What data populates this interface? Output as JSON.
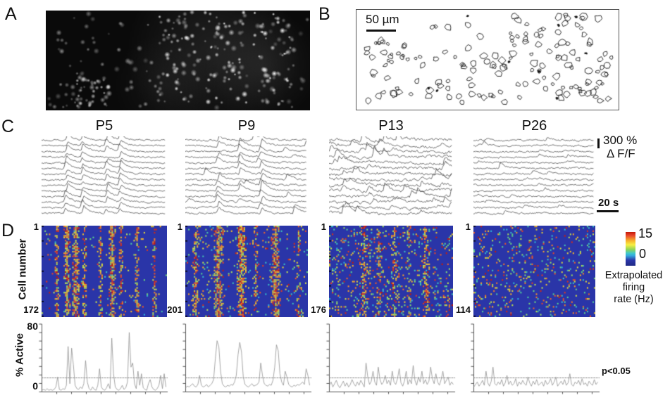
{
  "panel_a": {
    "label": "A"
  },
  "panel_b": {
    "label": "B",
    "scale_bar": "50 µm"
  },
  "panel_c": {
    "label": "C",
    "ages": [
      "P5",
      "P9",
      "P13",
      "P26"
    ],
    "y_scale_value": "300 %",
    "y_scale_unit": "Δ F/F",
    "x_scale": "20 s"
  },
  "panel_d": {
    "label": "D",
    "ylabel": "Cell number",
    "first_cell_label": "1",
    "cell_counts": [
      "172",
      "201",
      "176",
      "114"
    ],
    "colorbar": {
      "max": "15",
      "min": "0",
      "title": [
        "Extrapolated",
        "firing",
        "rate (Hz)"
      ]
    },
    "activity": {
      "ymax": "80",
      "ymin": "0",
      "ylabel": "% Active",
      "significance": "p<0.05"
    }
  },
  "chart_data": [
    {
      "id": "fluorescence",
      "type": "scatter",
      "panel": "A",
      "description": "Fluorescence image of labeled cells, brighter dense cluster right of center",
      "n_cells": 330,
      "seed": 11,
      "haze": [
        {
          "x": 0.63,
          "y": 0.4,
          "r": 0.33,
          "a": 0.14
        },
        {
          "x": 0.82,
          "y": 0.55,
          "r": 0.22,
          "a": 0.12
        },
        {
          "x": 0.45,
          "y": 0.75,
          "r": 0.2,
          "a": 0.07
        }
      ]
    },
    {
      "id": "contours",
      "type": "scatter",
      "panel": "B",
      "description": "Outlines of detected cells",
      "n_cells": 185,
      "scale_bar_um": 50,
      "seed": 22
    },
    {
      "id": "traces-p5",
      "type": "line",
      "panel": "C",
      "age": "P5",
      "n_traces": 14,
      "y_scale_pct": 300,
      "x_scale_s": 20,
      "sync_events": [
        0.2,
        0.33,
        0.52,
        0.63
      ],
      "participation": 0.9,
      "amp": 9,
      "noise": 0.9,
      "rand_events": 0,
      "wander": 0.5,
      "seed": 31
    },
    {
      "id": "traces-p9",
      "type": "line",
      "panel": "C",
      "age": "P9",
      "n_traces": 14,
      "y_scale_pct": 300,
      "x_scale_s": 20,
      "sync_events": [
        0.27,
        0.45,
        0.62
      ],
      "participation": 0.7,
      "amp": 10,
      "noise": 1.0,
      "rand_events": 1,
      "wander": 0.7,
      "seed": 32
    },
    {
      "id": "traces-p13",
      "type": "line",
      "panel": "C",
      "age": "P13",
      "n_traces": 14,
      "y_scale_pct": 300,
      "x_scale_s": 20,
      "sync_events": [],
      "participation": 0,
      "amp": 11,
      "noise": 1.6,
      "rand_events": 4,
      "wander": 2,
      "seed": 33
    },
    {
      "id": "traces-p26",
      "type": "line",
      "panel": "C",
      "age": "P26",
      "n_traces": 14,
      "y_scale_pct": 300,
      "x_scale_s": 20,
      "sync_events": [],
      "participation": 0,
      "amp": 4.5,
      "noise": 1.0,
      "rand_events": 2,
      "wander": 0.5,
      "seed": 34
    },
    {
      "id": "raster-p5",
      "type": "heatmap",
      "panel": "D",
      "age": "P5",
      "n_cells": 172,
      "vmin": 0,
      "vmax": 15,
      "value_unit": "Hz",
      "colormap": "jet",
      "time_bins": 86,
      "display_rows": 58,
      "speckle": 0.02,
      "seed": 41,
      "bands": [
        [
          0.12,
          1,
          0.55
        ],
        [
          0.2,
          2,
          0.85
        ],
        [
          0.27,
          2,
          0.8
        ],
        [
          0.34,
          1,
          0.5
        ],
        [
          0.47,
          1,
          0.45
        ],
        [
          0.56,
          2,
          0.8
        ],
        [
          0.63,
          1,
          0.5
        ],
        [
          0.76,
          1,
          0.6
        ],
        [
          0.9,
          1,
          0.5
        ]
      ]
    },
    {
      "id": "raster-p9",
      "type": "heatmap",
      "panel": "D",
      "age": "P9",
      "n_cells": 201,
      "vmin": 0,
      "vmax": 15,
      "value_unit": "Hz",
      "colormap": "jet",
      "time_bins": 86,
      "display_rows": 58,
      "speckle": 0.055,
      "seed": 42,
      "bands": [
        [
          0.08,
          2,
          0.5
        ],
        [
          0.27,
          3,
          0.8
        ],
        [
          0.45,
          3,
          0.85
        ],
        [
          0.57,
          1,
          0.4
        ],
        [
          0.73,
          3,
          0.8
        ],
        [
          0.92,
          1,
          0.45
        ]
      ]
    },
    {
      "id": "raster-p13",
      "type": "heatmap",
      "panel": "D",
      "age": "P13",
      "n_cells": 176,
      "vmin": 0,
      "vmax": 15,
      "value_unit": "Hz",
      "colormap": "jet",
      "time_bins": 86,
      "display_rows": 58,
      "speckle": 0.12,
      "seed": 43,
      "bands": [
        [
          0.28,
          2,
          0.45
        ],
        [
          0.4,
          1,
          0.35
        ],
        [
          0.52,
          2,
          0.4
        ],
        [
          0.64,
          1,
          0.35
        ],
        [
          0.78,
          2,
          0.45
        ]
      ]
    },
    {
      "id": "raster-p26",
      "type": "heatmap",
      "panel": "D",
      "age": "P26",
      "n_cells": 114,
      "vmin": 0,
      "vmax": 15,
      "value_unit": "Hz",
      "colormap": "jet",
      "time_bins": 86,
      "display_rows": 58,
      "speckle": 0.1,
      "seed": 44,
      "bands": []
    },
    {
      "id": "active-p5",
      "type": "line",
      "panel": "D",
      "age": "P5",
      "ylabel": "% Active",
      "ylim": [
        0,
        80
      ],
      "threshold": 17,
      "threshold_label": "p<0.05",
      "seed": 51,
      "values": [
        2,
        3,
        2,
        4,
        2,
        3,
        2,
        3,
        6,
        18,
        3,
        2,
        4,
        3,
        8,
        55,
        10,
        53,
        33,
        8,
        4,
        3,
        6,
        4,
        10,
        38,
        12,
        4,
        2,
        6,
        3,
        2,
        8,
        28,
        6,
        3,
        2,
        5,
        10,
        4,
        65,
        22,
        6,
        3,
        2,
        4,
        8,
        3,
        5,
        12,
        72,
        30,
        35,
        10,
        4,
        25,
        8,
        22,
        5,
        3,
        2,
        10,
        15,
        6,
        3,
        2,
        4,
        8,
        20,
        4,
        22,
        6
      ]
    },
    {
      "id": "active-p9",
      "type": "line",
      "panel": "D",
      "age": "P9",
      "ylabel": "% Active",
      "ylim": [
        0,
        80
      ],
      "threshold": 17,
      "threshold_label": "p<0.05",
      "seed": 52,
      "values": [
        5,
        7,
        6,
        8,
        10,
        7,
        6,
        9,
        20,
        8,
        6,
        7,
        9,
        6,
        8,
        10,
        15,
        40,
        62,
        55,
        25,
        10,
        7,
        6,
        8,
        7,
        9,
        8,
        12,
        20,
        45,
        60,
        48,
        18,
        9,
        7,
        6,
        8,
        10,
        7,
        8,
        9,
        12,
        35,
        20,
        10,
        8,
        7,
        9,
        8,
        14,
        30,
        57,
        50,
        22,
        12,
        8,
        25,
        18,
        9,
        7,
        6,
        8,
        7,
        9,
        8,
        10,
        12,
        9,
        28,
        20,
        8
      ]
    },
    {
      "id": "active-p13",
      "type": "line",
      "panel": "D",
      "age": "P13",
      "ylabel": "% Active",
      "ylim": [
        0,
        80
      ],
      "threshold": 17,
      "threshold_label": "p<0.05",
      "seed": 53,
      "values": [
        8,
        12,
        6,
        10,
        14,
        8,
        5,
        9,
        13,
        7,
        11,
        6,
        9,
        15,
        10,
        7,
        12,
        8,
        14,
        10,
        6,
        35,
        18,
        9,
        13,
        25,
        12,
        8,
        30,
        15,
        9,
        12,
        20,
        10,
        14,
        8,
        25,
        12,
        9,
        16,
        28,
        11,
        7,
        13,
        25,
        9,
        15,
        10,
        32,
        14,
        8,
        18,
        12,
        25,
        10,
        15,
        9,
        13,
        30,
        16,
        10,
        22,
        12,
        8,
        15,
        25,
        10,
        14,
        18,
        8,
        12,
        9
      ]
    },
    {
      "id": "active-p26",
      "type": "line",
      "panel": "D",
      "age": "P26",
      "ylabel": "% Active",
      "ylim": [
        0,
        80
      ],
      "threshold": 17,
      "threshold_label": "p<0.05",
      "seed": 54,
      "values": [
        6,
        9,
        12,
        7,
        10,
        14,
        8,
        25,
        11,
        7,
        13,
        30,
        10,
        8,
        12,
        9,
        15,
        7,
        11,
        20,
        9,
        13,
        8,
        10,
        16,
        7,
        12,
        9,
        14,
        10,
        8,
        18,
        11,
        7,
        13,
        9,
        15,
        8,
        10,
        12,
        7,
        14,
        9,
        11,
        16,
        8,
        12,
        18,
        7,
        10,
        13,
        9,
        15,
        8,
        11,
        22,
        9,
        7,
        12,
        10,
        14,
        8,
        16,
        9,
        11,
        7,
        13,
        10,
        8,
        15,
        9,
        12
      ]
    }
  ]
}
